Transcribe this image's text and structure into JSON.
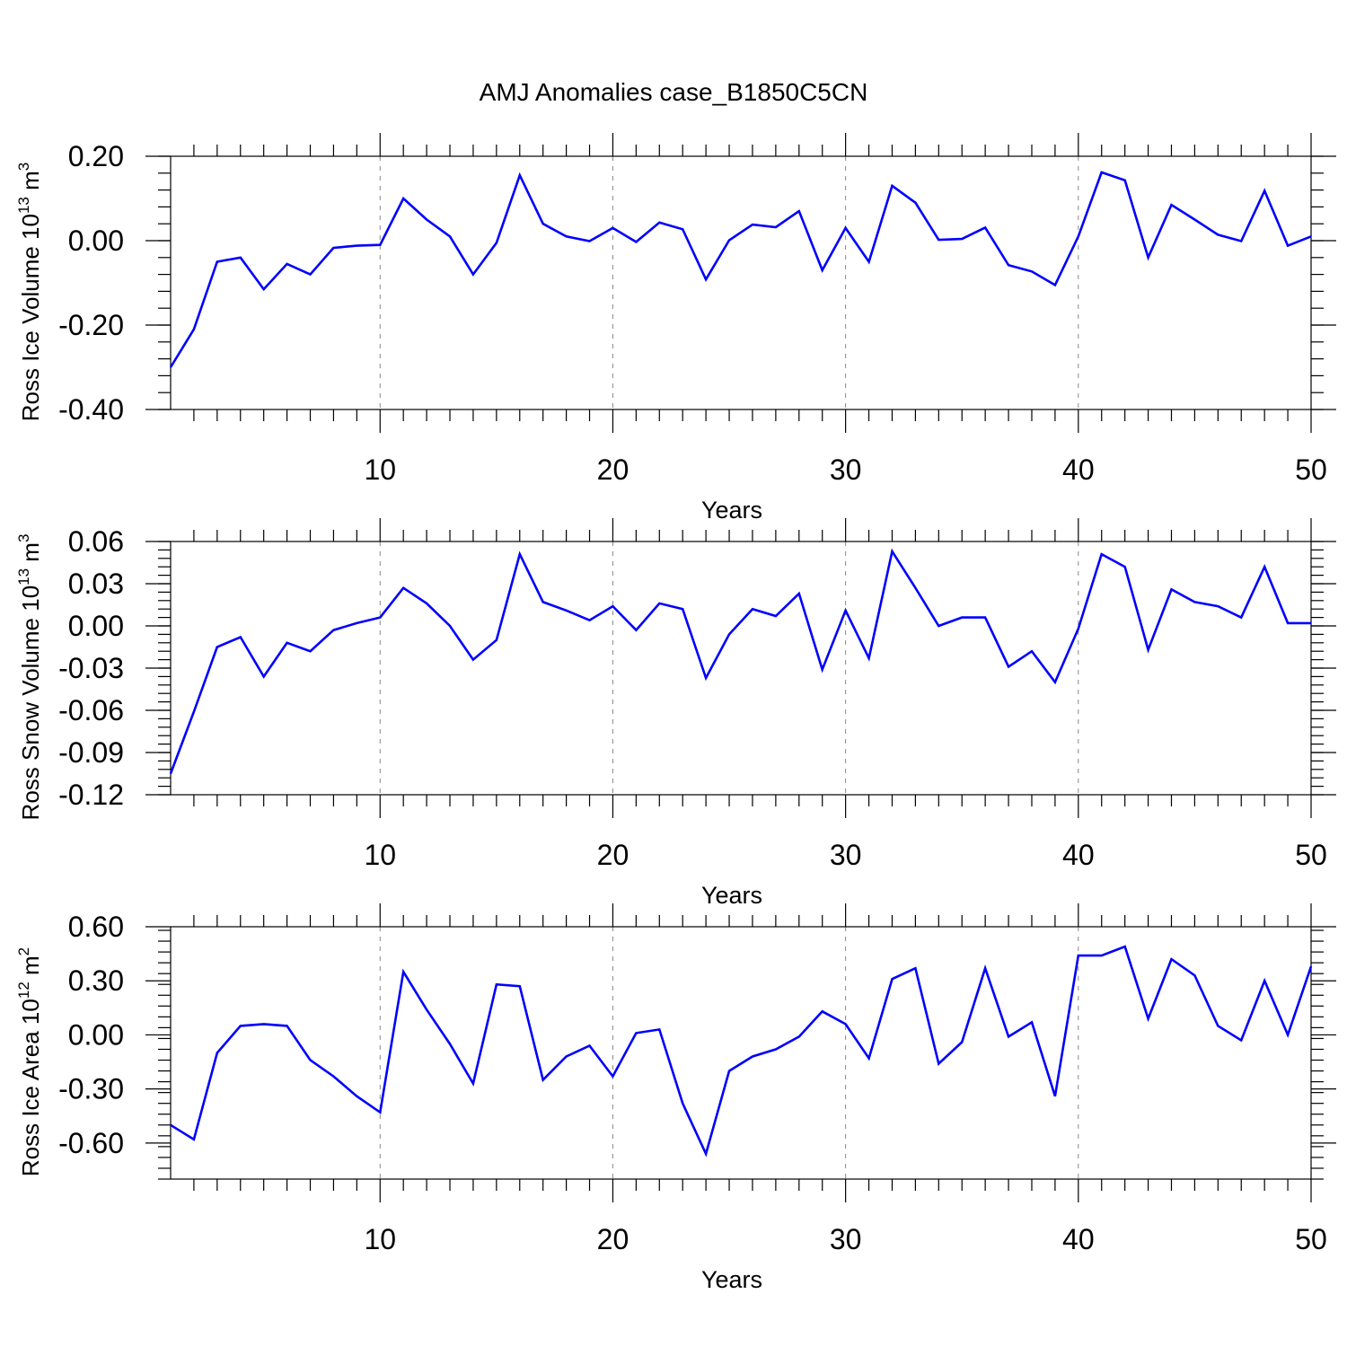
{
  "figure": {
    "title": "AMJ Anomalies case_B1850C5CN"
  },
  "chart_data": [
    {
      "type": "line",
      "title": "AMJ Anomalies case_B1850C5CN",
      "xlabel": "Years",
      "ylabel_main": "Ross Ice Volume 10",
      "ylabel_exp": "13",
      "ylabel_unit": " m",
      "ylabel_unit_exp": "3",
      "xlim": [
        1,
        50
      ],
      "ylim": [
        -0.4,
        0.2
      ],
      "yticks": [
        -0.4,
        -0.2,
        0.0,
        0.2
      ],
      "ytick_labels": [
        "-0.40",
        "-0.20",
        "0.00",
        "0.20"
      ],
      "xticks": [
        10,
        20,
        30,
        40,
        50
      ],
      "xtick_labels": [
        "10",
        "20",
        "30",
        "40",
        "50"
      ],
      "grid": "vertical dashed at x ticks",
      "line_color": "#0000ff",
      "x": [
        1,
        2,
        3,
        4,
        5,
        6,
        7,
        8,
        9,
        10,
        11,
        12,
        13,
        14,
        15,
        16,
        17,
        18,
        19,
        20,
        21,
        22,
        23,
        24,
        25,
        26,
        27,
        28,
        29,
        30,
        31,
        32,
        33,
        34,
        35,
        36,
        37,
        38,
        39,
        40,
        41,
        42,
        43,
        44,
        45,
        46,
        47,
        48,
        49,
        50
      ],
      "values": [
        -0.3,
        -0.21,
        -0.05,
        -0.04,
        -0.115,
        -0.055,
        -0.08,
        -0.017,
        -0.012,
        -0.01,
        0.1,
        0.05,
        0.01,
        -0.08,
        -0.005,
        0.155,
        0.04,
        0.01,
        -0.001,
        0.03,
        -0.003,
        0.043,
        0.027,
        -0.092,
        0.001,
        0.038,
        0.032,
        0.07,
        -0.07,
        0.03,
        -0.05,
        0.13,
        0.09,
        0.002,
        0.004,
        0.031,
        -0.058,
        -0.073,
        -0.105,
        0.01,
        0.162,
        0.143,
        -0.04,
        0.085,
        0.05,
        0.014,
        -0.001,
        0.118,
        -0.012,
        0.01
      ]
    },
    {
      "type": "line",
      "xlabel": "Years",
      "ylabel_main": "Ross Snow Volume 10",
      "ylabel_exp": "13",
      "ylabel_unit": " m",
      "ylabel_unit_exp": "3",
      "xlim": [
        1,
        50
      ],
      "ylim": [
        -0.12,
        0.06
      ],
      "yticks": [
        -0.12,
        -0.09,
        -0.06,
        -0.03,
        0.0,
        0.03,
        0.06
      ],
      "ytick_labels": [
        "-0.12",
        "-0.09",
        "-0.06",
        "-0.03",
        "0.00",
        "0.03",
        "0.06"
      ],
      "xticks": [
        10,
        20,
        30,
        40,
        50
      ],
      "xtick_labels": [
        "10",
        "20",
        "30",
        "40",
        "50"
      ],
      "grid": "vertical dashed at x ticks",
      "line_color": "#0000ff",
      "x": [
        1,
        2,
        3,
        4,
        5,
        6,
        7,
        8,
        9,
        10,
        11,
        12,
        13,
        14,
        15,
        16,
        17,
        18,
        19,
        20,
        21,
        22,
        23,
        24,
        25,
        26,
        27,
        28,
        29,
        30,
        31,
        32,
        33,
        34,
        35,
        36,
        37,
        38,
        39,
        40,
        41,
        42,
        43,
        44,
        45,
        46,
        47,
        48,
        49,
        50
      ],
      "values": [
        -0.105,
        -0.061,
        -0.015,
        -0.008,
        -0.036,
        -0.012,
        -0.018,
        -0.003,
        0.002,
        0.006,
        0.027,
        0.016,
        0.0,
        -0.024,
        -0.01,
        0.051,
        0.017,
        0.011,
        0.004,
        0.014,
        -0.003,
        0.016,
        0.012,
        -0.037,
        -0.006,
        0.012,
        0.007,
        0.023,
        -0.031,
        0.011,
        -0.023,
        0.053,
        0.027,
        0.0,
        0.006,
        0.006,
        -0.029,
        -0.018,
        -0.04,
        -0.002,
        0.051,
        0.042,
        -0.017,
        0.026,
        0.017,
        0.014,
        0.006,
        0.042,
        0.002,
        0.002
      ]
    },
    {
      "type": "line",
      "xlabel": "Years",
      "ylabel_main": "Ross Ice Area 10",
      "ylabel_exp": "12",
      "ylabel_unit": " m",
      "ylabel_unit_exp": "2",
      "xlim": [
        1,
        50
      ],
      "ylim": [
        -0.8,
        0.6
      ],
      "yticks": [
        -0.6,
        -0.3,
        0.0,
        0.3,
        0.6
      ],
      "ytick_labels": [
        "-0.60",
        "-0.30",
        "0.00",
        "0.30",
        "0.60"
      ],
      "xticks": [
        10,
        20,
        30,
        40,
        50
      ],
      "xtick_labels": [
        "10",
        "20",
        "30",
        "40",
        "50"
      ],
      "grid": "vertical dashed at x ticks",
      "line_color": "#0000ff",
      "x": [
        1,
        2,
        3,
        4,
        5,
        6,
        7,
        8,
        9,
        10,
        11,
        12,
        13,
        14,
        15,
        16,
        17,
        18,
        19,
        20,
        21,
        22,
        23,
        24,
        25,
        26,
        27,
        28,
        29,
        30,
        31,
        32,
        33,
        34,
        35,
        36,
        37,
        38,
        39,
        40,
        41,
        42,
        43,
        44,
        45,
        46,
        47,
        48,
        49,
        50
      ],
      "values": [
        -0.5,
        -0.58,
        -0.1,
        0.05,
        0.06,
        0.05,
        -0.14,
        -0.23,
        -0.34,
        -0.43,
        0.35,
        0.14,
        -0.05,
        -0.27,
        0.28,
        0.27,
        -0.25,
        -0.12,
        -0.06,
        -0.23,
        0.01,
        0.03,
        -0.38,
        -0.66,
        -0.2,
        -0.12,
        -0.08,
        -0.01,
        0.13,
        0.06,
        -0.13,
        0.31,
        0.37,
        -0.16,
        -0.04,
        0.37,
        -0.01,
        0.07,
        -0.34,
        0.44,
        0.44,
        0.49,
        0.09,
        0.42,
        0.33,
        0.05,
        -0.03,
        0.3,
        0.0,
        0.38
      ]
    }
  ]
}
